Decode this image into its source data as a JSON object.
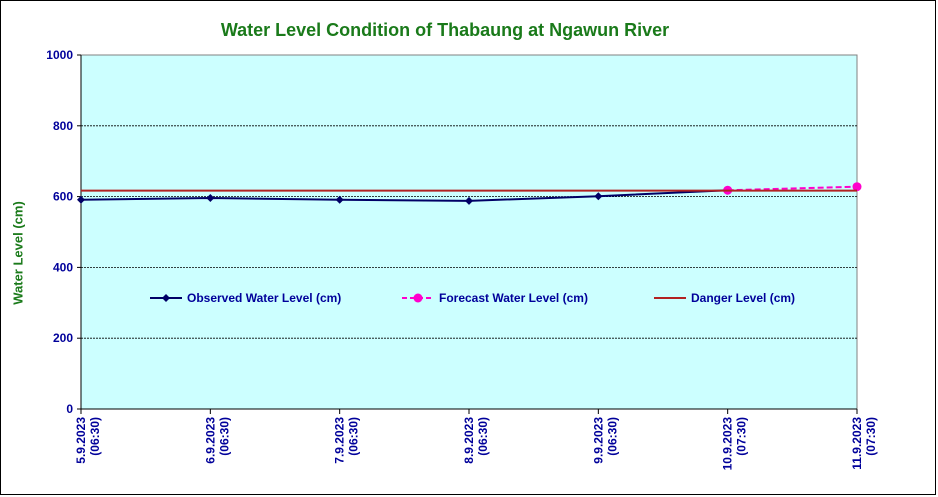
{
  "chart_data": {
    "type": "line",
    "title": "Water Level Condition of  Thabaung at Ngawun River",
    "ylabel": "Water Level (cm)",
    "xlabel": "",
    "ylim": [
      0,
      1000
    ],
    "yticks": [
      0,
      200,
      400,
      600,
      800,
      1000
    ],
    "categories": [
      [
        "5.9.2023",
        "(06:30)"
      ],
      [
        "6.9.2023",
        "(06:30)"
      ],
      [
        "7.9.2023",
        "(06:30)"
      ],
      [
        "8.9.2023",
        "(06:30)"
      ],
      [
        "9.9.2023",
        "(06:30)"
      ],
      [
        "10.9.2023",
        "(07:30)"
      ],
      [
        "11.9.2023",
        "(07:30)"
      ]
    ],
    "grid": true,
    "legend_position": "center",
    "series": [
      {
        "name": "Observed Water Level (cm)",
        "color": "#000066",
        "style": "solid",
        "marker": "diamond",
        "values": [
          591,
          596,
          591,
          588,
          601,
          618,
          null
        ]
      },
      {
        "name": "Forecast Water Level (cm)",
        "color": "#ff00cc",
        "style": "dashed",
        "marker": "circle",
        "values": [
          null,
          null,
          null,
          null,
          null,
          618,
          628
        ]
      },
      {
        "name": "Danger Level (cm)",
        "color": "#b22222",
        "style": "solid",
        "marker": "none",
        "values": [
          617,
          617,
          617,
          617,
          617,
          617,
          617
        ]
      }
    ],
    "colors": {
      "plot_bg": "#ccffff",
      "title": "#1a7a1a",
      "ticks": "#00009a"
    }
  }
}
